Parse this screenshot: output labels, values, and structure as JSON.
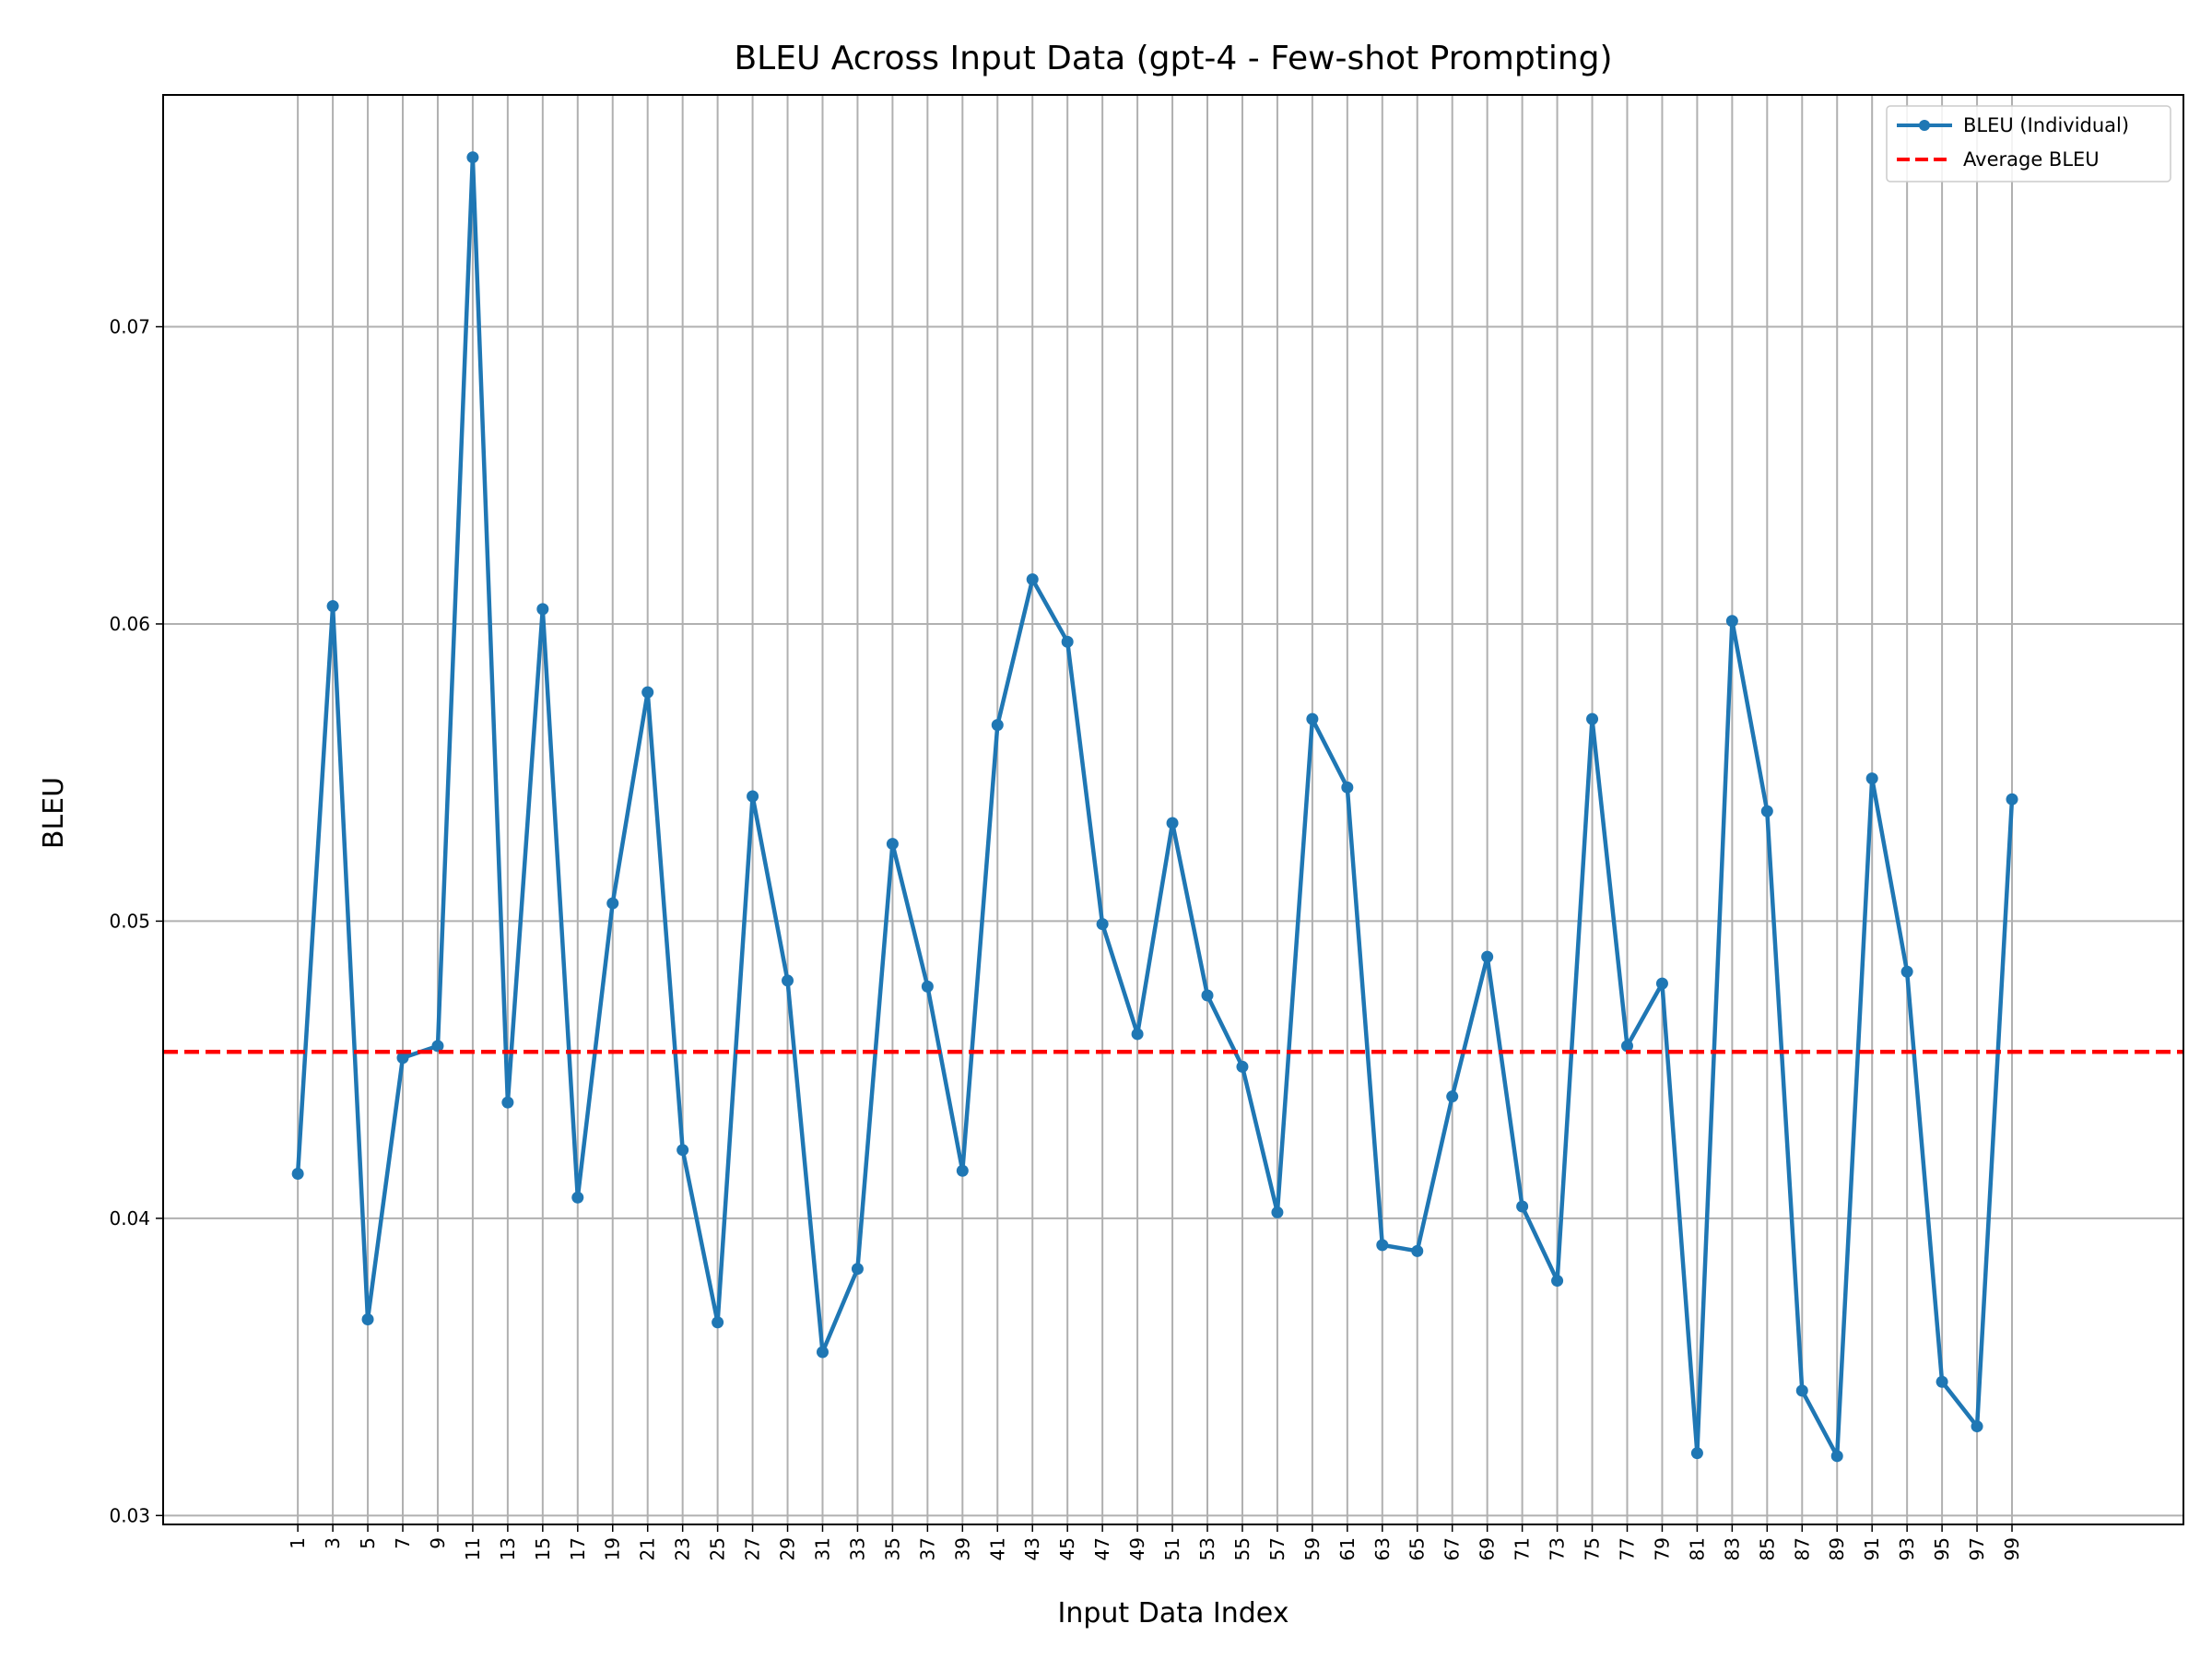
{
  "chart_data": {
    "type": "line",
    "title": "BLEU Across Input Data (gpt-4 - Few-shot Prompting)",
    "xlabel": "Input Data Index",
    "ylabel": "BLEU",
    "x": [
      1,
      3,
      5,
      7,
      9,
      11,
      13,
      15,
      17,
      19,
      21,
      23,
      25,
      27,
      29,
      31,
      33,
      35,
      37,
      39,
      41,
      43,
      45,
      47,
      49,
      51,
      53,
      55,
      57,
      59,
      61,
      63,
      65,
      67,
      69,
      71,
      73,
      75,
      77,
      79,
      81,
      83,
      85,
      87,
      89,
      91,
      93,
      95,
      97,
      99
    ],
    "xticks": [
      "1",
      "3",
      "5",
      "7",
      "9",
      "11",
      "13",
      "15",
      "17",
      "19",
      "21",
      "23",
      "25",
      "27",
      "29",
      "31",
      "33",
      "35",
      "37",
      "39",
      "41",
      "43",
      "45",
      "47",
      "49",
      "51",
      "53",
      "55",
      "57",
      "59",
      "61",
      "63",
      "65",
      "67",
      "69",
      "71",
      "73",
      "75",
      "77",
      "79",
      "81",
      "83",
      "85",
      "87",
      "89",
      "91",
      "93",
      "95",
      "97",
      "99"
    ],
    "yticks": [
      "0.03",
      "0.04",
      "0.05",
      "0.06",
      "0.07"
    ],
    "ytick_values": [
      0.03,
      0.04,
      0.05,
      0.06,
      0.07
    ],
    "xlim": [
      -6.7,
      108.8
    ],
    "ylim": [
      0.0297,
      0.0778
    ],
    "grid": true,
    "legend_position": "top-right",
    "series": [
      {
        "name": "BLEU (Individual)",
        "color": "#1f77b4",
        "style": "solid-with-markers",
        "values": [
          0.0415,
          0.0606,
          0.0366,
          0.0454,
          0.0458,
          0.0757,
          0.0439,
          0.0605,
          0.0407,
          0.0506,
          0.0577,
          0.0423,
          0.0365,
          0.0542,
          0.048,
          0.0355,
          0.0383,
          0.0526,
          0.0478,
          0.0416,
          0.0566,
          0.0615,
          0.0594,
          0.0499,
          0.0462,
          0.0533,
          0.0475,
          0.0451,
          0.0402,
          0.0568,
          0.0545,
          0.0391,
          0.0389,
          0.0441,
          0.0488,
          0.0404,
          0.0379,
          0.0568,
          0.0458,
          0.0479,
          0.0321,
          0.0601,
          0.0537,
          0.0342,
          0.032,
          0.0548,
          0.0483,
          0.0345,
          0.033,
          0.0541
        ]
      },
      {
        "name": "Average BLEU",
        "color": "#ff0000",
        "style": "dashed",
        "value": 0.0456
      }
    ]
  }
}
